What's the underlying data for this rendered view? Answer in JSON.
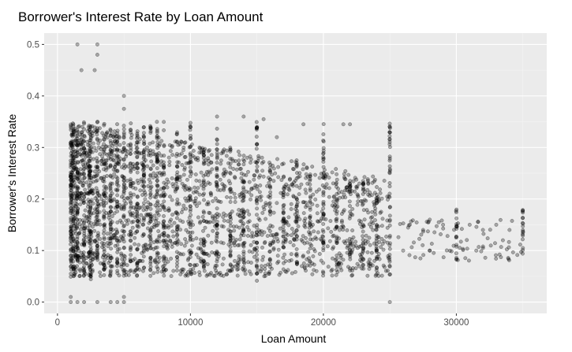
{
  "chart_data": {
    "type": "scatter",
    "title": "Borrower's Interest Rate by Loan Amount",
    "xlabel": "Loan Amount",
    "ylabel": "Borrower's Interest Rate",
    "xlim": [
      -1000,
      36800
    ],
    "ylim": [
      -0.022,
      0.522
    ],
    "x_ticks": [
      0,
      10000,
      20000,
      30000
    ],
    "y_ticks": [
      0.0,
      0.1,
      0.2,
      0.3,
      0.4,
      0.5
    ],
    "x_tick_labels": [
      "0",
      "10000",
      "20000",
      "30000"
    ],
    "y_tick_labels": [
      "0.0",
      "0.1",
      "0.2",
      "0.3",
      "0.4",
      "0.5"
    ],
    "grid": true,
    "legend": "none",
    "point_color": "#000000",
    "point_alpha": 0.3,
    "panel_color": "#ebebeb",
    "dense_region": {
      "x": [
        1000,
        25000
      ],
      "y": [
        0.05,
        0.35
      ],
      "note": "overplotted"
    },
    "columns": [
      {
        "x": 1000,
        "y": [
          0.04,
          0.35
        ]
      },
      {
        "x": 1200,
        "y": [
          0.05,
          0.35
        ]
      },
      {
        "x": 1500,
        "y": [
          0.05,
          0.35
        ]
      },
      {
        "x": 2000,
        "y": [
          0.05,
          0.35
        ]
      },
      {
        "x": 2400,
        "y": [
          0.05,
          0.35
        ]
      },
      {
        "x": 2500,
        "y": [
          0.04,
          0.35
        ]
      },
      {
        "x": 3000,
        "y": [
          0.05,
          0.35
        ]
      },
      {
        "x": 3500,
        "y": [
          0.05,
          0.35
        ]
      },
      {
        "x": 4000,
        "y": [
          0.05,
          0.35
        ]
      },
      {
        "x": 4500,
        "y": [
          0.05,
          0.35
        ]
      },
      {
        "x": 5000,
        "y": [
          0.05,
          0.35
        ]
      },
      {
        "x": 5500,
        "y": [
          0.06,
          0.35
        ]
      },
      {
        "x": 6000,
        "y": [
          0.05,
          0.35
        ]
      },
      {
        "x": 6500,
        "y": [
          0.06,
          0.34
        ]
      },
      {
        "x": 7000,
        "y": [
          0.05,
          0.35
        ]
      },
      {
        "x": 7500,
        "y": [
          0.06,
          0.35
        ]
      },
      {
        "x": 8000,
        "y": [
          0.05,
          0.35
        ]
      },
      {
        "x": 9000,
        "y": [
          0.06,
          0.33
        ]
      },
      {
        "x": 10000,
        "y": [
          0.05,
          0.35
        ]
      },
      {
        "x": 11000,
        "y": [
          0.06,
          0.31
        ]
      },
      {
        "x": 12000,
        "y": [
          0.05,
          0.34
        ]
      },
      {
        "x": 13000,
        "y": [
          0.06,
          0.3
        ]
      },
      {
        "x": 14000,
        "y": [
          0.06,
          0.29
        ]
      },
      {
        "x": 15000,
        "y": [
          0.04,
          0.35
        ]
      },
      {
        "x": 16000,
        "y": [
          0.06,
          0.27
        ]
      },
      {
        "x": 17000,
        "y": [
          0.06,
          0.27
        ]
      },
      {
        "x": 18000,
        "y": [
          0.06,
          0.28
        ]
      },
      {
        "x": 19000,
        "y": [
          0.06,
          0.25
        ]
      },
      {
        "x": 20000,
        "y": [
          0.05,
          0.35
        ]
      },
      {
        "x": 21000,
        "y": [
          0.06,
          0.25
        ]
      },
      {
        "x": 22000,
        "y": [
          0.06,
          0.24
        ]
      },
      {
        "x": 23000,
        "y": [
          0.06,
          0.24
        ]
      },
      {
        "x": 24000,
        "y": [
          0.06,
          0.23
        ]
      },
      {
        "x": 25000,
        "y": [
          0.05,
          0.35
        ]
      },
      {
        "x": 30000,
        "y": [
          0.08,
          0.18
        ]
      },
      {
        "x": 35000,
        "y": [
          0.09,
          0.18
        ]
      }
    ],
    "scatter_points": [
      {
        "x": 1500,
        "y": 0.5
      },
      {
        "x": 3000,
        "y": 0.5
      },
      {
        "x": 1800,
        "y": 0.45
      },
      {
        "x": 2800,
        "y": 0.45
      },
      {
        "x": 3000,
        "y": 0.48
      },
      {
        "x": 5000,
        "y": 0.4
      },
      {
        "x": 5000,
        "y": 0.375
      },
      {
        "x": 1000,
        "y": 0.0
      },
      {
        "x": 1000,
        "y": 0.01
      },
      {
        "x": 1500,
        "y": 0.0
      },
      {
        "x": 2000,
        "y": 0.0
      },
      {
        "x": 3000,
        "y": 0.0
      },
      {
        "x": 4000,
        "y": 0.0
      },
      {
        "x": 4500,
        "y": 0.0
      },
      {
        "x": 5000,
        "y": 0.0
      },
      {
        "x": 5000,
        "y": 0.01
      },
      {
        "x": 25000,
        "y": 0.0
      },
      {
        "x": 14000,
        "y": 0.36
      },
      {
        "x": 15500,
        "y": 0.355
      },
      {
        "x": 18500,
        "y": 0.345
      },
      {
        "x": 21500,
        "y": 0.345
      },
      {
        "x": 22000,
        "y": 0.345
      },
      {
        "x": 16500,
        "y": 0.32
      },
      {
        "x": 12000,
        "y": 0.36
      },
      {
        "x": 26500,
        "y": 0.15
      },
      {
        "x": 27500,
        "y": 0.14
      },
      {
        "x": 28000,
        "y": 0.16
      },
      {
        "x": 29000,
        "y": 0.15
      },
      {
        "x": 31000,
        "y": 0.15
      },
      {
        "x": 32000,
        "y": 0.14
      },
      {
        "x": 33000,
        "y": 0.15
      },
      {
        "x": 34000,
        "y": 0.14
      },
      {
        "x": 26000,
        "y": 0.1
      },
      {
        "x": 28000,
        "y": 0.1
      },
      {
        "x": 31500,
        "y": 0.1
      },
      {
        "x": 33500,
        "y": 0.12
      }
    ]
  }
}
